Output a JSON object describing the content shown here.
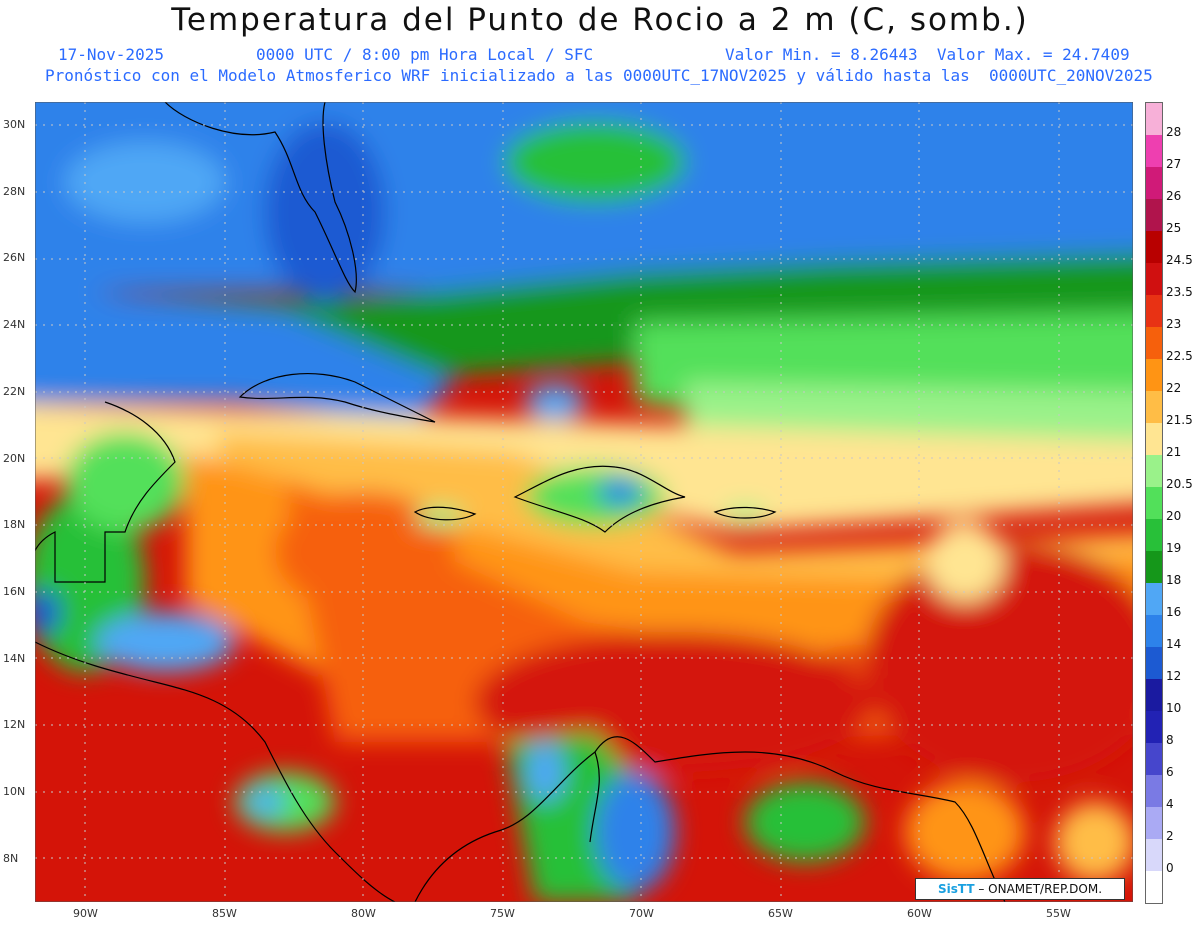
{
  "header": {
    "title": "Temperatura del Punto de Rocio a 2 m (C, somb.)",
    "date": "17-Nov-2025",
    "time": "0000 UTC / 8:00 pm Hora Local / SFC",
    "minmax": "Valor Min. = 8.26443  Valor Max. = 24.7409",
    "model_line": "Pronóstico con el Modelo Atmosferico WRF inicializado a las 0000UTC_17NOV2025 y válido hasta las  0000UTC_20NOV2025"
  },
  "axes": {
    "lat_labels": [
      "30N",
      "28N",
      "26N",
      "24N",
      "22N",
      "20N",
      "18N",
      "16N",
      "14N",
      "12N",
      "10N",
      "8N"
    ],
    "lon_labels": [
      "90W",
      "85W",
      "80W",
      "75W",
      "70W",
      "65W",
      "60W",
      "55W"
    ]
  },
  "colorbar": {
    "levels": [
      {
        "label": "28",
        "color": "#f7b0d8"
      },
      {
        "label": "27",
        "color": "#ee3fb0"
      },
      {
        "label": "26",
        "color": "#d01a78"
      },
      {
        "label": "25",
        "color": "#b0144c"
      },
      {
        "label": "24.5",
        "color": "#b80000"
      },
      {
        "label": "23.5",
        "color": "#d01010"
      },
      {
        "label": "23",
        "color": "#e83214"
      },
      {
        "label": "22.5",
        "color": "#f6600c"
      },
      {
        "label": "22",
        "color": "#ff9414"
      },
      {
        "label": "21.5",
        "color": "#ffbd46"
      },
      {
        "label": "21",
        "color": "#ffe592"
      },
      {
        "label": "20.5",
        "color": "#9af28a"
      },
      {
        "label": "20",
        "color": "#52e05a"
      },
      {
        "label": "19",
        "color": "#28c039"
      },
      {
        "label": "18",
        "color": "#15971a"
      },
      {
        "label": "16",
        "color": "#50a7f5"
      },
      {
        "label": "14",
        "color": "#2d82ea"
      },
      {
        "label": "12",
        "color": "#1c5ad2"
      },
      {
        "label": "10",
        "color": "#1a1aa0"
      },
      {
        "label": "8",
        "color": "#2222b4"
      },
      {
        "label": "6",
        "color": "#4646cc"
      },
      {
        "label": "4",
        "color": "#7a7ae4"
      },
      {
        "label": "2",
        "color": "#aaaaf4"
      },
      {
        "label": "0",
        "color": "#d8d8fa"
      }
    ]
  },
  "credit": {
    "logo": "SisTT",
    "text": "– ONAMET/REP.DOM."
  }
}
